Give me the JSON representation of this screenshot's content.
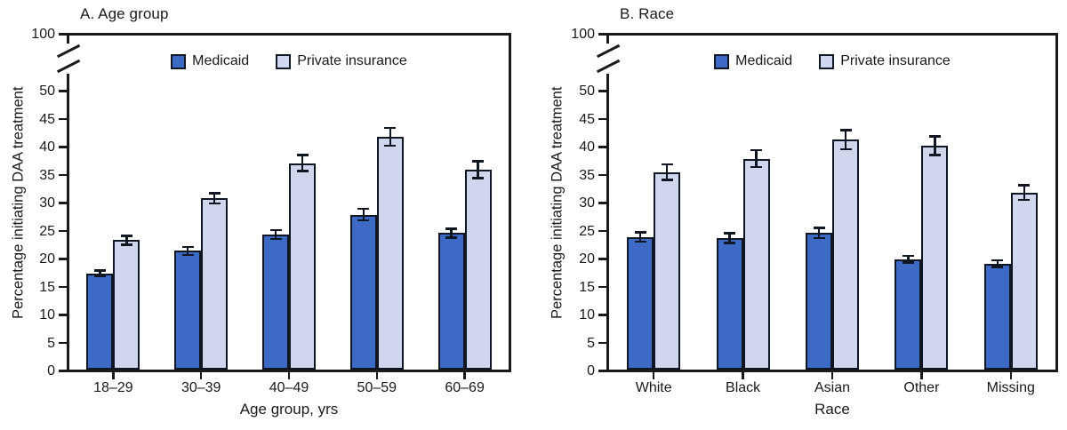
{
  "colors": {
    "medicaid": "#3C6AC4",
    "private_insurance": "#CFD6EE",
    "bar_border": "#111722",
    "axis": "#1a1a1a"
  },
  "y_axis": {
    "ticks": [
      0,
      5,
      10,
      15,
      20,
      25,
      30,
      35,
      40,
      45,
      50
    ],
    "break_top_tick": 100,
    "has_axis_break": true
  },
  "chart_data": [
    {
      "type": "bar",
      "panel": "A",
      "title": "A. Age group",
      "xlabel": "Age group, yrs",
      "ylabel": "Percentage initiating DAA treatment",
      "categories": [
        "18–29",
        "30–39",
        "40–49",
        "50–59",
        "60–69"
      ],
      "series": [
        {
          "name": "Medicaid",
          "color": "#3C6AC4",
          "values": [
            17.2,
            21.2,
            24.1,
            27.7,
            24.4
          ],
          "errors": [
            0.7,
            0.9,
            1.0,
            1.2,
            1.0
          ]
        },
        {
          "name": "Private insurance",
          "color": "#CFD6EE",
          "values": [
            23.1,
            30.6,
            36.9,
            41.6,
            35.7
          ],
          "errors": [
            1.0,
            1.1,
            1.6,
            1.8,
            1.7
          ]
        }
      ],
      "ylim_lower": [
        0,
        50
      ],
      "y_break_to": 100,
      "grid": false,
      "legend_position": "top-center-inside",
      "error_bars": "95% CI"
    },
    {
      "type": "bar",
      "panel": "B",
      "title": "B. Race",
      "xlabel": "Race",
      "ylabel": "Percentage initiating DAA treatment",
      "categories": [
        "White",
        "Black",
        "Asian",
        "Other",
        "Missing"
      ],
      "series": [
        {
          "name": "Medicaid",
          "color": "#3C6AC4",
          "values": [
            23.7,
            23.5,
            24.4,
            19.7,
            18.9
          ],
          "errors": [
            1.0,
            1.1,
            1.1,
            0.8,
            0.8
          ]
        },
        {
          "name": "Private insurance",
          "color": "#CFD6EE",
          "values": [
            35.3,
            37.7,
            41.1,
            40.0,
            31.6
          ],
          "errors": [
            1.6,
            1.7,
            1.9,
            1.9,
            1.5
          ]
        }
      ],
      "ylim_lower": [
        0,
        50
      ],
      "y_break_to": 100,
      "grid": false,
      "legend_position": "top-center-inside",
      "error_bars": "95% CI"
    }
  ]
}
